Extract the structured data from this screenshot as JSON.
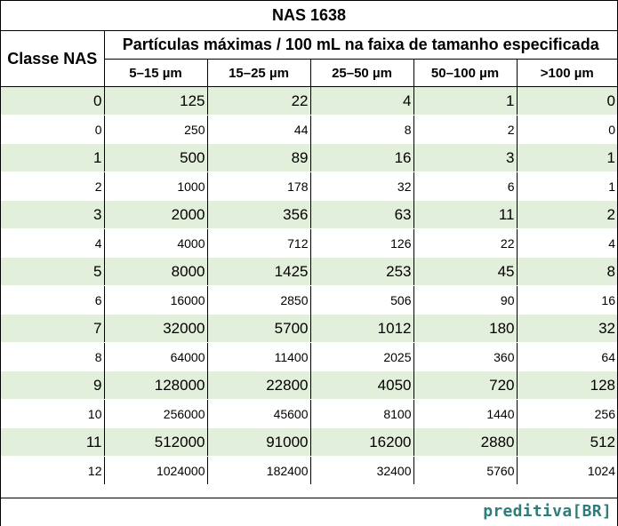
{
  "table": {
    "title": "NAS 1638",
    "class_header": "Classe NAS",
    "span_header": "Partículas máximas / 100 mL na faixa de tamanho especificada",
    "size_headers": [
      "5–15 µm",
      "15–25 µm",
      "25–50 µm",
      "50–100 µm",
      ">100 µm"
    ],
    "rows": [
      {
        "cls": "0",
        "v": [
          "125",
          "22",
          "4",
          "1",
          "0"
        ]
      },
      {
        "cls": "0",
        "v": [
          "250",
          "44",
          "8",
          "2",
          "0"
        ]
      },
      {
        "cls": "1",
        "v": [
          "500",
          "89",
          "16",
          "3",
          "1"
        ]
      },
      {
        "cls": "2",
        "v": [
          "1000",
          "178",
          "32",
          "6",
          "1"
        ]
      },
      {
        "cls": "3",
        "v": [
          "2000",
          "356",
          "63",
          "11",
          "2"
        ]
      },
      {
        "cls": "4",
        "v": [
          "4000",
          "712",
          "126",
          "22",
          "4"
        ]
      },
      {
        "cls": "5",
        "v": [
          "8000",
          "1425",
          "253",
          "45",
          "8"
        ]
      },
      {
        "cls": "6",
        "v": [
          "16000",
          "2850",
          "506",
          "90",
          "16"
        ]
      },
      {
        "cls": "7",
        "v": [
          "32000",
          "5700",
          "1012",
          "180",
          "32"
        ]
      },
      {
        "cls": "8",
        "v": [
          "64000",
          "11400",
          "2025",
          "360",
          "64"
        ]
      },
      {
        "cls": "9",
        "v": [
          "128000",
          "22800",
          "4050",
          "720",
          "128"
        ]
      },
      {
        "cls": "10",
        "v": [
          "256000",
          "45600",
          "8100",
          "1440",
          "256"
        ]
      },
      {
        "cls": "11",
        "v": [
          "512000",
          "91000",
          "16200",
          "2880",
          "512"
        ]
      },
      {
        "cls": "12",
        "v": [
          "1024000",
          "182400",
          "32400",
          "5760",
          "1024"
        ]
      }
    ]
  },
  "footer": {
    "brand": "preditiva[BR]"
  },
  "colors": {
    "highlight_row": "#e2efda",
    "brand": "#2d7d7a"
  }
}
